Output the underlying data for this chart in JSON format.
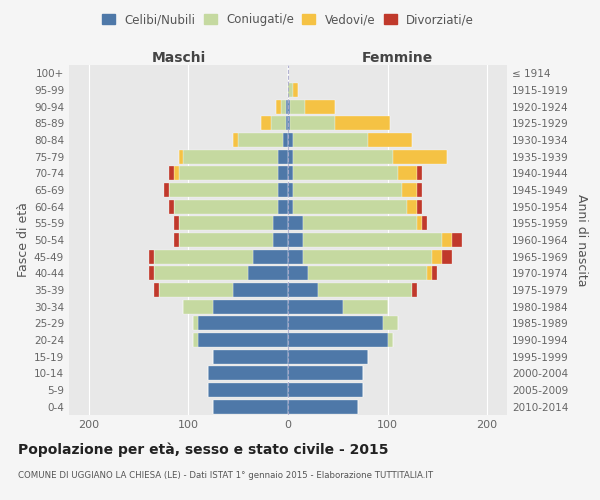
{
  "age_groups": [
    "0-4",
    "5-9",
    "10-14",
    "15-19",
    "20-24",
    "25-29",
    "30-34",
    "35-39",
    "40-44",
    "45-49",
    "50-54",
    "55-59",
    "60-64",
    "65-69",
    "70-74",
    "75-79",
    "80-84",
    "85-89",
    "90-94",
    "95-99",
    "100+"
  ],
  "birth_years": [
    "2010-2014",
    "2005-2009",
    "2000-2004",
    "1995-1999",
    "1990-1994",
    "1985-1989",
    "1980-1984",
    "1975-1979",
    "1970-1974",
    "1965-1969",
    "1960-1964",
    "1955-1959",
    "1950-1954",
    "1945-1949",
    "1940-1944",
    "1935-1939",
    "1930-1934",
    "1925-1929",
    "1920-1924",
    "1915-1919",
    "≤ 1914"
  ],
  "colors": {
    "celibe": "#4e78a8",
    "coniugato": "#c5d9a0",
    "vedovo": "#f5c244",
    "divorziato": "#c0392b"
  },
  "maschi": {
    "celibe": [
      75,
      80,
      80,
      75,
      90,
      90,
      75,
      55,
      40,
      35,
      15,
      15,
      10,
      10,
      10,
      10,
      5,
      2,
      2,
      0,
      0
    ],
    "coniugato": [
      0,
      0,
      0,
      0,
      5,
      5,
      30,
      75,
      95,
      100,
      95,
      95,
      105,
      110,
      100,
      95,
      45,
      15,
      5,
      0,
      0
    ],
    "vedovo": [
      0,
      0,
      0,
      0,
      0,
      0,
      0,
      0,
      0,
      0,
      0,
      0,
      0,
      0,
      5,
      5,
      5,
      10,
      5,
      0,
      0
    ],
    "divorziato": [
      0,
      0,
      0,
      0,
      0,
      0,
      0,
      5,
      5,
      5,
      5,
      5,
      5,
      5,
      5,
      0,
      0,
      0,
      0,
      0,
      0
    ]
  },
  "femmine": {
    "nubile": [
      70,
      75,
      75,
      80,
      100,
      95,
      55,
      30,
      20,
      15,
      15,
      15,
      5,
      5,
      5,
      5,
      5,
      2,
      2,
      0,
      0
    ],
    "coniugata": [
      0,
      0,
      0,
      0,
      5,
      15,
      45,
      95,
      120,
      130,
      140,
      115,
      115,
      110,
      105,
      100,
      75,
      45,
      15,
      5,
      0
    ],
    "vedova": [
      0,
      0,
      0,
      0,
      0,
      0,
      0,
      0,
      5,
      10,
      10,
      5,
      10,
      15,
      20,
      55,
      45,
      55,
      30,
      5,
      0
    ],
    "divorziata": [
      0,
      0,
      0,
      0,
      0,
      0,
      0,
      5,
      5,
      10,
      10,
      5,
      5,
      5,
      5,
      0,
      0,
      0,
      0,
      0,
      0
    ]
  },
  "xlim": 220,
  "title": "Popolazione per età, sesso e stato civile - 2015",
  "subtitle": "COMUNE DI UGGIANO LA CHIESA (LE) - Dati ISTAT 1° gennaio 2015 - Elaborazione TUTTITALIA.IT",
  "ylabel_left": "Fasce di età",
  "ylabel_right": "Anni di nascita",
  "bg_color": "#f5f5f5",
  "plot_bg_color": "#e8e8e8"
}
